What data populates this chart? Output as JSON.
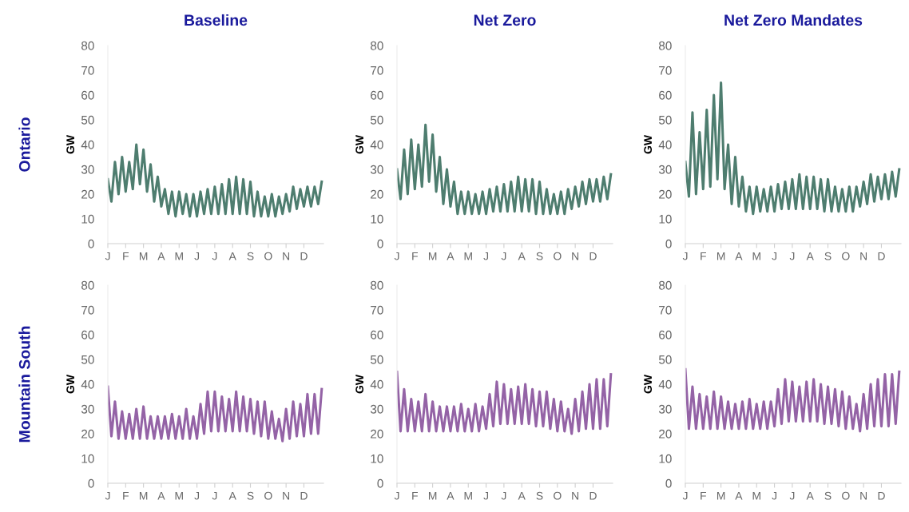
{
  "chart_data": [
    {
      "type": "line",
      "title": "Baseline",
      "ylabel": "GW",
      "annotations": [
        "Ontario"
      ],
      "ylim": [
        0,
        80
      ],
      "yticks": [
        0,
        10,
        20,
        30,
        40,
        50,
        60,
        70,
        80
      ],
      "categories": [
        "J",
        null,
        null,
        null,
        null,
        "F",
        null,
        null,
        null,
        null,
        "M",
        null,
        null,
        null,
        null,
        "A",
        null,
        null,
        null,
        null,
        "M",
        null,
        null,
        null,
        null,
        "J",
        null,
        null,
        null,
        null,
        "J",
        null,
        null,
        null,
        null,
        "A",
        null,
        null,
        null,
        null,
        "S",
        null,
        null,
        null,
        null,
        "O",
        null,
        null,
        null,
        null,
        "N",
        null,
        null,
        null,
        null,
        "D",
        null,
        null,
        null,
        null,
        null
      ],
      "series": [
        {
          "color": "#4e7d6f",
          "values": [
            26,
            17,
            33,
            20,
            35,
            21,
            33,
            22,
            40,
            24,
            38,
            21,
            32,
            17,
            27,
            15,
            22,
            12,
            21,
            11,
            21,
            12,
            20,
            11,
            20,
            11,
            21,
            12,
            22,
            12,
            23,
            12,
            24,
            12,
            26,
            12,
            27,
            12,
            26,
            12,
            25,
            11,
            21,
            11,
            19,
            11,
            20,
            11,
            19,
            12,
            20,
            13,
            23,
            14,
            22,
            15,
            23,
            15,
            23,
            16,
            25
          ]
        }
      ]
    },
    {
      "type": "line",
      "title": "Net Zero",
      "ylabel": "GW",
      "ylim": [
        0,
        80
      ],
      "yticks": [
        0,
        10,
        20,
        30,
        40,
        50,
        60,
        70,
        80
      ],
      "categories": [
        "J",
        null,
        null,
        null,
        null,
        "F",
        null,
        null,
        null,
        null,
        "M",
        null,
        null,
        null,
        null,
        "A",
        null,
        null,
        null,
        null,
        "M",
        null,
        null,
        null,
        null,
        "J",
        null,
        null,
        null,
        null,
        "J",
        null,
        null,
        null,
        null,
        "A",
        null,
        null,
        null,
        null,
        "S",
        null,
        null,
        null,
        null,
        "O",
        null,
        null,
        null,
        null,
        "N",
        null,
        null,
        null,
        null,
        "D",
        null,
        null,
        null,
        null,
        null
      ],
      "series": [
        {
          "color": "#4e7d6f",
          "values": [
            30,
            18,
            38,
            20,
            42,
            22,
            40,
            23,
            48,
            25,
            44,
            21,
            35,
            16,
            30,
            15,
            25,
            12,
            21,
            12,
            21,
            12,
            20,
            12,
            21,
            12,
            22,
            13,
            23,
            13,
            24,
            13,
            25,
            13,
            27,
            13,
            26,
            13,
            26,
            12,
            25,
            12,
            22,
            12,
            20,
            12,
            21,
            12,
            22,
            14,
            23,
            15,
            25,
            16,
            26,
            17,
            26,
            17,
            27,
            18,
            28
          ]
        }
      ]
    },
    {
      "type": "line",
      "title": "Net Zero Mandates",
      "ylabel": "GW",
      "ylim": [
        0,
        80
      ],
      "yticks": [
        0,
        10,
        20,
        30,
        40,
        50,
        60,
        70,
        80
      ],
      "categories": [
        "J",
        null,
        null,
        null,
        null,
        "F",
        null,
        null,
        null,
        null,
        "M",
        null,
        null,
        null,
        null,
        "A",
        null,
        null,
        null,
        null,
        "M",
        null,
        null,
        null,
        null,
        "J",
        null,
        null,
        null,
        null,
        "J",
        null,
        null,
        null,
        null,
        "A",
        null,
        null,
        null,
        null,
        "S",
        null,
        null,
        null,
        null,
        "O",
        null,
        null,
        null,
        null,
        "N",
        null,
        null,
        null,
        null,
        "D",
        null,
        null,
        null,
        null,
        null
      ],
      "series": [
        {
          "color": "#4e7d6f",
          "values": [
            33,
            19,
            53,
            20,
            45,
            22,
            54,
            23,
            60,
            26,
            65,
            22,
            40,
            16,
            35,
            15,
            27,
            13,
            23,
            12,
            23,
            13,
            22,
            13,
            23,
            13,
            24,
            14,
            25,
            14,
            26,
            14,
            28,
            14,
            27,
            14,
            27,
            14,
            26,
            13,
            26,
            13,
            23,
            13,
            22,
            13,
            23,
            13,
            23,
            15,
            25,
            16,
            28,
            17,
            27,
            18,
            28,
            18,
            29,
            19,
            30
          ]
        }
      ]
    },
    {
      "type": "line",
      "ylabel": "GW",
      "annotations": [
        "Mountain South"
      ],
      "ylim": [
        0,
        80
      ],
      "yticks": [
        0,
        10,
        20,
        30,
        40,
        50,
        60,
        70,
        80
      ],
      "categories": [
        "J",
        null,
        null,
        null,
        null,
        "F",
        null,
        null,
        null,
        null,
        "M",
        null,
        null,
        null,
        null,
        "A",
        null,
        null,
        null,
        null,
        "M",
        null,
        null,
        null,
        null,
        "J",
        null,
        null,
        null,
        null,
        "J",
        null,
        null,
        null,
        null,
        "A",
        null,
        null,
        null,
        null,
        "S",
        null,
        null,
        null,
        null,
        "O",
        null,
        null,
        null,
        null,
        "N",
        null,
        null,
        null,
        null,
        "D",
        null,
        null,
        null,
        null,
        null
      ],
      "series": [
        {
          "color": "#9463a6",
          "values": [
            39,
            19,
            33,
            18,
            29,
            18,
            28,
            18,
            30,
            18,
            31,
            18,
            27,
            18,
            27,
            18,
            27,
            18,
            28,
            18,
            27,
            18,
            30,
            18,
            27,
            18,
            32,
            20,
            37,
            21,
            37,
            21,
            35,
            21,
            34,
            21,
            37,
            21,
            35,
            21,
            34,
            20,
            33,
            19,
            33,
            18,
            29,
            18,
            26,
            17,
            30,
            18,
            33,
            19,
            32,
            19,
            36,
            20,
            36,
            20,
            38
          ]
        }
      ]
    },
    {
      "type": "line",
      "ylabel": "GW",
      "ylim": [
        0,
        80
      ],
      "yticks": [
        0,
        10,
        20,
        30,
        40,
        50,
        60,
        70,
        80
      ],
      "categories": [
        "J",
        null,
        null,
        null,
        null,
        "F",
        null,
        null,
        null,
        null,
        "M",
        null,
        null,
        null,
        null,
        "A",
        null,
        null,
        null,
        null,
        "M",
        null,
        null,
        null,
        null,
        "J",
        null,
        null,
        null,
        null,
        "J",
        null,
        null,
        null,
        null,
        "A",
        null,
        null,
        null,
        null,
        "S",
        null,
        null,
        null,
        null,
        "O",
        null,
        null,
        null,
        null,
        "N",
        null,
        null,
        null,
        null,
        "D",
        null,
        null,
        null,
        null,
        null
      ],
      "series": [
        {
          "color": "#9463a6",
          "values": [
            45,
            21,
            38,
            21,
            34,
            21,
            33,
            21,
            36,
            21,
            33,
            21,
            31,
            21,
            31,
            21,
            31,
            21,
            32,
            21,
            30,
            21,
            32,
            21,
            31,
            22,
            36,
            23,
            41,
            24,
            40,
            24,
            38,
            24,
            39,
            24,
            40,
            24,
            38,
            23,
            37,
            23,
            37,
            22,
            34,
            21,
            33,
            21,
            30,
            20,
            34,
            21,
            37,
            22,
            40,
            22,
            42,
            22,
            42,
            23,
            44
          ]
        }
      ]
    },
    {
      "type": "line",
      "ylabel": "GW",
      "ylim": [
        0,
        80
      ],
      "yticks": [
        0,
        10,
        20,
        30,
        40,
        50,
        60,
        70,
        80
      ],
      "categories": [
        "J",
        null,
        null,
        null,
        null,
        "F",
        null,
        null,
        null,
        null,
        "M",
        null,
        null,
        null,
        null,
        "A",
        null,
        null,
        null,
        null,
        "M",
        null,
        null,
        null,
        null,
        "J",
        null,
        null,
        null,
        null,
        "J",
        null,
        null,
        null,
        null,
        "A",
        null,
        null,
        null,
        null,
        "S",
        null,
        null,
        null,
        null,
        "O",
        null,
        null,
        null,
        null,
        "N",
        null,
        null,
        null,
        null,
        "D",
        null,
        null,
        null,
        null,
        null
      ],
      "series": [
        {
          "color": "#9463a6",
          "values": [
            46,
            22,
            39,
            22,
            36,
            22,
            35,
            22,
            37,
            22,
            35,
            22,
            33,
            22,
            32,
            22,
            33,
            22,
            34,
            22,
            32,
            22,
            33,
            22,
            33,
            23,
            38,
            24,
            42,
            25,
            41,
            25,
            39,
            25,
            41,
            25,
            42,
            25,
            40,
            24,
            39,
            24,
            38,
            23,
            37,
            22,
            35,
            22,
            32,
            21,
            36,
            22,
            40,
            23,
            42,
            23,
            44,
            23,
            44,
            24,
            45
          ]
        }
      ]
    }
  ]
}
